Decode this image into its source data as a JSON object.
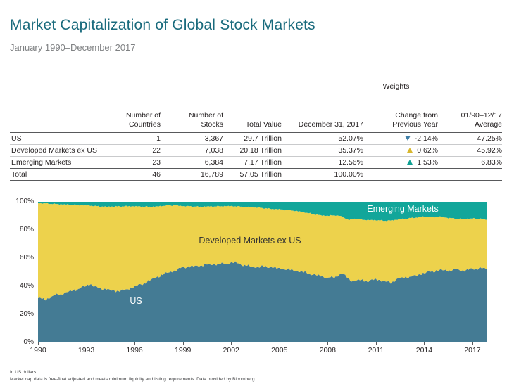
{
  "header": {
    "title": "Market Capitalization of Global Stock Markets",
    "subtitle": "January 1990–December 2017"
  },
  "table": {
    "weights_label": "Weights",
    "columns": [
      "",
      "Number of\nCountries",
      "Number of\nStocks",
      "Total Value",
      "December 31, 2017",
      "Change from\nPrevious Year",
      "01/90–12/17\nAverage"
    ],
    "rows": [
      {
        "label": "US",
        "countries": "1",
        "stocks": "3,367",
        "value": "29.7 Trillion",
        "weight": "52.07%",
        "change": "-2.14%",
        "change_dir": "down",
        "change_color": "#3f7fa8",
        "average": "47.25%",
        "total": false
      },
      {
        "label": "Developed Markets ex US",
        "countries": "22",
        "stocks": "7,038",
        "value": "20.18 Trillion",
        "weight": "35.37%",
        "change": "0.62%",
        "change_dir": "up",
        "change_color": "#d8b72e",
        "average": "45.92%",
        "total": false
      },
      {
        "label": "Emerging Markets",
        "countries": "23",
        "stocks": "6,384",
        "value": "7.17 Trillion",
        "weight": "12.56%",
        "change": "1.53%",
        "change_dir": "up",
        "change_color": "#0fa093",
        "average": "6.83%",
        "total": false
      },
      {
        "label": "Total",
        "countries": "46",
        "stocks": "16,789",
        "value": "57.05 Trillion",
        "weight": "100.00%",
        "change": "",
        "change_dir": "none",
        "change_color": "",
        "average": "",
        "total": true
      }
    ]
  },
  "chart_data": {
    "type": "area",
    "stacked": true,
    "normalized": "shares sum to 100%",
    "x_range": [
      1990,
      2017.92
    ],
    "y_range": [
      0,
      100
    ],
    "x_tick_years": [
      1990,
      1993,
      1996,
      1999,
      2002,
      2005,
      2008,
      2011,
      2014,
      2017
    ],
    "x_tick_labels": [
      "1990",
      "1993",
      "1996",
      "1999",
      "2002",
      "2005",
      "2008",
      "2011",
      "2014",
      "2017"
    ],
    "y_tick_values": [
      0,
      20,
      40,
      60,
      80,
      100
    ],
    "y_tick_labels": [
      "0%",
      "20%",
      "40%",
      "60%",
      "80%",
      "100%"
    ],
    "grid": false,
    "legend": "labels drawn inside areas",
    "series": [
      {
        "name": "US",
        "color": "#447b94"
      },
      {
        "name": "Developed Markets ex US",
        "color": "#edd24c"
      },
      {
        "name": "Emerging Markets",
        "color": "#12a69a"
      }
    ],
    "anchor_years": [
      1990,
      1990.5,
      1991,
      1991.5,
      1992,
      1992.5,
      1993,
      1993.25,
      1993.75,
      1994.25,
      1994.75,
      1995.5,
      1996,
      1996.5,
      1997,
      1997.5,
      1998,
      1998.5,
      1999,
      1999.5,
      2000,
      2000.5,
      2001,
      2001.5,
      2002,
      2002.25,
      2002.75,
      2003.5,
      2004,
      2004.5,
      2005,
      2005.5,
      2006,
      2006.5,
      2007,
      2007.5,
      2008,
      2008.5,
      2008.9,
      2009.3,
      2009.6,
      2010,
      2010.5,
      2011,
      2011.5,
      2011.9,
      2012.4,
      2013,
      2013.5,
      2014,
      2014.5,
      2015,
      2015.5,
      2016,
      2016.4,
      2016.8,
      2017.2,
      2017.6,
      2017.92
    ],
    "us_share_pct": [
      31.5,
      30.5,
      33.5,
      34.5,
      36.5,
      38,
      40.5,
      41.5,
      38.5,
      38,
      36.5,
      37.5,
      40,
      41.5,
      44.5,
      47,
      49.5,
      51,
      53.5,
      54,
      54.5,
      55.5,
      55.5,
      56,
      56.5,
      57,
      55,
      53.5,
      54,
      53.5,
      52.5,
      52,
      51,
      50,
      48.5,
      47.5,
      46,
      46.5,
      49.5,
      45,
      43.5,
      44.5,
      43.5,
      45,
      43.5,
      42.5,
      45.5,
      46.5,
      47.5,
      49.5,
      50.5,
      51.5,
      51,
      52,
      51,
      52,
      52.5,
      53,
      52.07
    ],
    "emerging_share_pct": [
      1.0,
      1.2,
      1.5,
      1.8,
      2.0,
      2.3,
      2.5,
      2.7,
      3.2,
      3.5,
      3.3,
      3.1,
      3.2,
      3.4,
      3.5,
      3.2,
      2.6,
      2.5,
      3.0,
      3.2,
      3.5,
      3.3,
      3.2,
      3.1,
      3.1,
      3.2,
      3.5,
      4.0,
      4.5,
      5.0,
      5.3,
      5.8,
      6.5,
      7.3,
      8.5,
      9.5,
      10.0,
      9.5,
      10.5,
      13.0,
      12.0,
      12.5,
      13.0,
      13.0,
      13.5,
      13.3,
      12.5,
      11.8,
      11.2,
      10.5,
      10.8,
      10.5,
      11.5,
      12.0,
      12.3,
      12.0,
      11.8,
      12.3,
      12.56
    ],
    "developed_ex_us_rule": "developed ex US share = 100 - US - Emerging"
  },
  "footnotes": [
    "In US dollars.",
    "Market cap data is free-float adjusted and meets minimum liquidity and listing requirements. Data provided by Bloomberg."
  ]
}
